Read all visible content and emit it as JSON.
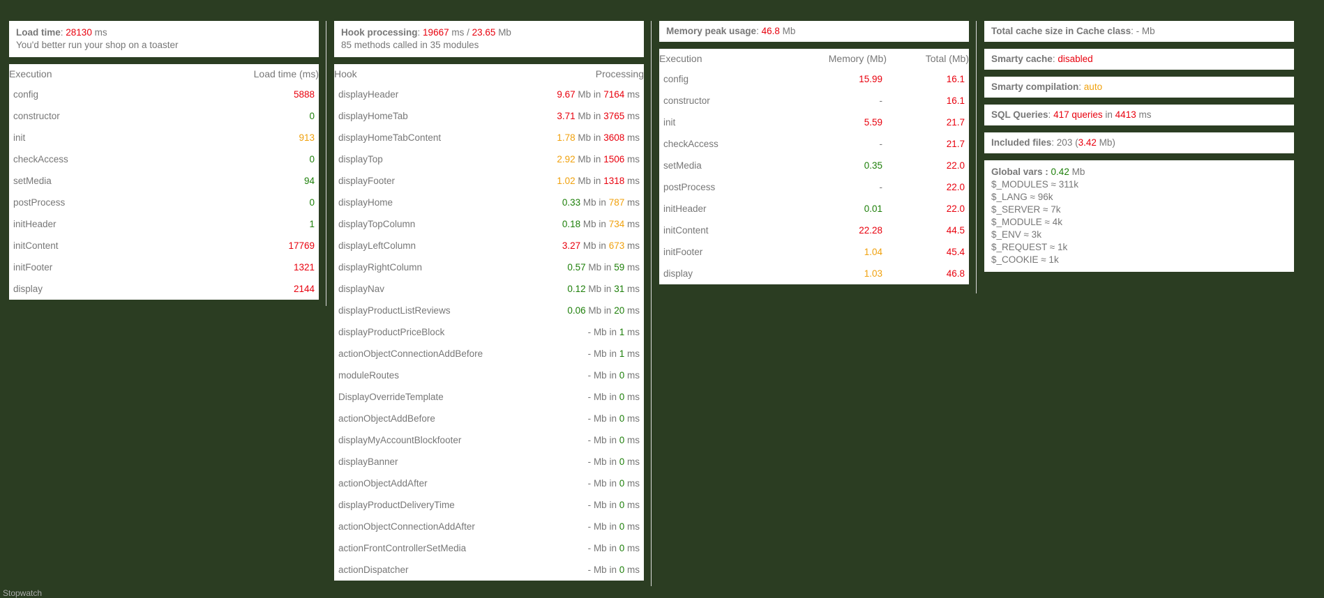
{
  "colors": {
    "red": "#e8000d",
    "green": "#1d7f09",
    "orange": "#f0a10d",
    "background": "#2b3d22"
  },
  "load": {
    "label": "Load time",
    "value": "28130",
    "unit": "ms",
    "note": "You'd better run your shop on a toaster",
    "headers": [
      "Execution",
      "Load time (ms)"
    ],
    "rows": [
      {
        "name": "config",
        "value": "5888",
        "color": "red"
      },
      {
        "name": "constructor",
        "value": "0",
        "color": "green"
      },
      {
        "name": "init",
        "value": "913",
        "color": "orange"
      },
      {
        "name": "checkAccess",
        "value": "0",
        "color": "green"
      },
      {
        "name": "setMedia",
        "value": "94",
        "color": "green"
      },
      {
        "name": "postProcess",
        "value": "0",
        "color": "green"
      },
      {
        "name": "initHeader",
        "value": "1",
        "color": "green"
      },
      {
        "name": "initContent",
        "value": "17769",
        "color": "red"
      },
      {
        "name": "initFooter",
        "value": "1321",
        "color": "red"
      },
      {
        "name": "display",
        "value": "2144",
        "color": "red"
      }
    ]
  },
  "hooks": {
    "label": "Hook processing",
    "time": "19667",
    "time_unit": "ms /",
    "mem": "23.65",
    "mem_unit": "Mb",
    "note": "85 methods called in 35 modules",
    "headers": [
      "Hook",
      "Processing"
    ],
    "mb_label": "Mb in",
    "ms_label": "ms",
    "rows": [
      {
        "name": "displayHeader",
        "mem": "9.67",
        "mem_color": "red",
        "time": "7164",
        "time_color": "red"
      },
      {
        "name": "displayHomeTab",
        "mem": "3.71",
        "mem_color": "red",
        "time": "3765",
        "time_color": "red"
      },
      {
        "name": "displayHomeTabContent",
        "mem": "1.78",
        "mem_color": "orange",
        "time": "3608",
        "time_color": "red"
      },
      {
        "name": "displayTop",
        "mem": "2.92",
        "mem_color": "orange",
        "time": "1506",
        "time_color": "red"
      },
      {
        "name": "displayFooter",
        "mem": "1.02",
        "mem_color": "orange",
        "time": "1318",
        "time_color": "red"
      },
      {
        "name": "displayHome",
        "mem": "0.33",
        "mem_color": "green",
        "time": "787",
        "time_color": "orange"
      },
      {
        "name": "displayTopColumn",
        "mem": "0.18",
        "mem_color": "green",
        "time": "734",
        "time_color": "orange"
      },
      {
        "name": "displayLeftColumn",
        "mem": "3.27",
        "mem_color": "red",
        "time": "673",
        "time_color": "orange"
      },
      {
        "name": "displayRightColumn",
        "mem": "0.57",
        "mem_color": "green",
        "time": "59",
        "time_color": "green"
      },
      {
        "name": "displayNav",
        "mem": "0.12",
        "mem_color": "green",
        "time": "31",
        "time_color": "green"
      },
      {
        "name": "displayProductListReviews",
        "mem": "0.06",
        "mem_color": "green",
        "time": "20",
        "time_color": "green"
      },
      {
        "name": "displayProductPriceBlock",
        "mem": "-",
        "mem_color": "",
        "time": "1",
        "time_color": "green"
      },
      {
        "name": "actionObjectConnectionAddBefore",
        "mem": "-",
        "mem_color": "",
        "time": "1",
        "time_color": "green"
      },
      {
        "name": "moduleRoutes",
        "mem": "-",
        "mem_color": "",
        "time": "0",
        "time_color": "green"
      },
      {
        "name": "DisplayOverrideTemplate",
        "mem": "-",
        "mem_color": "",
        "time": "0",
        "time_color": "green"
      },
      {
        "name": "actionObjectAddBefore",
        "mem": "-",
        "mem_color": "",
        "time": "0",
        "time_color": "green"
      },
      {
        "name": "displayMyAccountBlockfooter",
        "mem": "-",
        "mem_color": "",
        "time": "0",
        "time_color": "green"
      },
      {
        "name": "displayBanner",
        "mem": "-",
        "mem_color": "",
        "time": "0",
        "time_color": "green"
      },
      {
        "name": "actionObjectAddAfter",
        "mem": "-",
        "mem_color": "",
        "time": "0",
        "time_color": "green"
      },
      {
        "name": "displayProductDeliveryTime",
        "mem": "-",
        "mem_color": "",
        "time": "0",
        "time_color": "green"
      },
      {
        "name": "actionObjectConnectionAddAfter",
        "mem": "-",
        "mem_color": "",
        "time": "0",
        "time_color": "green"
      },
      {
        "name": "actionFrontControllerSetMedia",
        "mem": "-",
        "mem_color": "",
        "time": "0",
        "time_color": "green"
      },
      {
        "name": "actionDispatcher",
        "mem": "-",
        "mem_color": "",
        "time": "0",
        "time_color": "green"
      }
    ]
  },
  "memory": {
    "label": "Memory peak usage",
    "value": "46.8",
    "unit": "Mb",
    "headers": [
      "Execution",
      "Memory (Mb)",
      "Total (Mb)"
    ],
    "rows": [
      {
        "name": "config",
        "mem": "15.99",
        "mem_color": "red",
        "total": "16.1"
      },
      {
        "name": "constructor",
        "mem": "-",
        "mem_color": "",
        "total": "16.1"
      },
      {
        "name": "init",
        "mem": "5.59",
        "mem_color": "red",
        "total": "21.7"
      },
      {
        "name": "checkAccess",
        "mem": "-",
        "mem_color": "",
        "total": "21.7"
      },
      {
        "name": "setMedia",
        "mem": "0.35",
        "mem_color": "green",
        "total": "22.0"
      },
      {
        "name": "postProcess",
        "mem": "-",
        "mem_color": "",
        "total": "22.0"
      },
      {
        "name": "initHeader",
        "mem": "0.01",
        "mem_color": "green",
        "total": "22.0"
      },
      {
        "name": "initContent",
        "mem": "22.28",
        "mem_color": "red",
        "total": "44.5"
      },
      {
        "name": "initFooter",
        "mem": "1.04",
        "mem_color": "orange",
        "total": "45.4"
      },
      {
        "name": "display",
        "mem": "1.03",
        "mem_color": "orange",
        "total": "46.8"
      }
    ]
  },
  "stats": {
    "cache_label": "Total cache size in Cache class",
    "cache_value": "- Mb",
    "smarty_cache_label": "Smarty cache",
    "smarty_cache_value": "disabled",
    "smarty_comp_label": "Smarty compilation",
    "smarty_comp_value": "auto",
    "sql_label": "SQL Queries",
    "sql_count": "417 queries",
    "sql_in": "in",
    "sql_time": "4413",
    "sql_unit": "ms",
    "files_label": "Included files",
    "files_count": "203",
    "files_size": "3.42",
    "files_unit": "Mb",
    "globals_label": "Global vars :",
    "globals_value": "0.42",
    "globals_unit": "Mb",
    "globals": [
      "$_MODULES ≈ 311k",
      "$_LANG ≈ 96k",
      "$_SERVER ≈ 7k",
      "$_MODULE ≈ 4k",
      "$_ENV ≈ 3k",
      "$_REQUEST ≈ 1k",
      "$_COOKIE ≈ 1k"
    ]
  },
  "footer": "Stopwatch"
}
